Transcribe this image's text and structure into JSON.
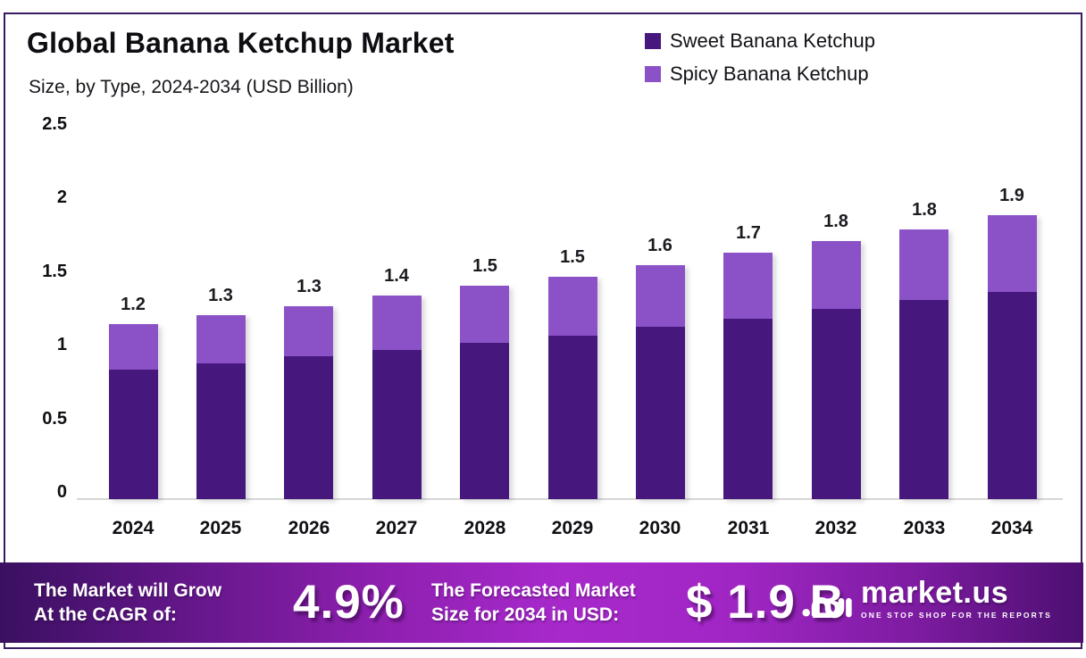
{
  "header": {
    "title": "Global Banana Ketchup Market",
    "subtitle": "Size, by Type, 2024-2034 (USD Billion)"
  },
  "legend": [
    {
      "label": "Sweet Banana Ketchup",
      "color": "#46187e"
    },
    {
      "label": "Spicy Banana Ketchup",
      "color": "#8b52c8"
    }
  ],
  "chart_data": {
    "type": "bar",
    "stacked": true,
    "title": "Global Banana Ketchup Market Size, by Type, 2024-2034 (USD Billion)",
    "categories": [
      "2024",
      "2025",
      "2026",
      "2027",
      "2028",
      "2029",
      "2030",
      "2031",
      "2032",
      "2033",
      "2034"
    ],
    "series": [
      {
        "name": "Sweet Banana Ketchup",
        "color": "#46187e",
        "values": [
          0.88,
          0.92,
          0.97,
          1.01,
          1.06,
          1.11,
          1.17,
          1.22,
          1.29,
          1.35,
          1.41
        ]
      },
      {
        "name": "Spicy Banana Ketchup",
        "color": "#8b52c8",
        "values": [
          0.31,
          0.33,
          0.34,
          0.37,
          0.39,
          0.4,
          0.42,
          0.45,
          0.46,
          0.48,
          0.52
        ]
      }
    ],
    "total_labels": [
      "1.2",
      "1.3",
      "1.3",
      "1.4",
      "1.5",
      "1.5",
      "1.6",
      "1.7",
      "1.8",
      "1.8",
      "1.9"
    ],
    "xlabel": "",
    "ylabel": "USD Billion",
    "ylim": [
      0,
      2.5
    ],
    "yticks": [
      {
        "value": 0,
        "label": "0"
      },
      {
        "value": 0.5,
        "label": "0.5"
      },
      {
        "value": 1,
        "label": "1"
      },
      {
        "value": 1.5,
        "label": "1.5"
      },
      {
        "value": 2,
        "label": "2"
      },
      {
        "value": 2.5,
        "label": "2.5"
      }
    ],
    "grid": false,
    "legend_position": "top-right"
  },
  "footer": {
    "cagr_label_line1": "The Market will Grow",
    "cagr_label_line2": "At the CAGR of:",
    "cagr_value": "4.9%",
    "forecast_label_line1": "The Forecasted Market",
    "forecast_label_line2": "Size for 2034 in USD:",
    "forecast_value": "$ 1.9 B",
    "brand_name": "market.us",
    "brand_tagline": "ONE STOP SHOP FOR THE REPORTS"
  },
  "colors": {
    "border": "#3a1a63",
    "axis_line": "#d6d6d6",
    "footer_gradient_left": "#3a1060",
    "footer_gradient_mid": "#a829cb",
    "footer_gradient_right": "#4c0f70"
  }
}
